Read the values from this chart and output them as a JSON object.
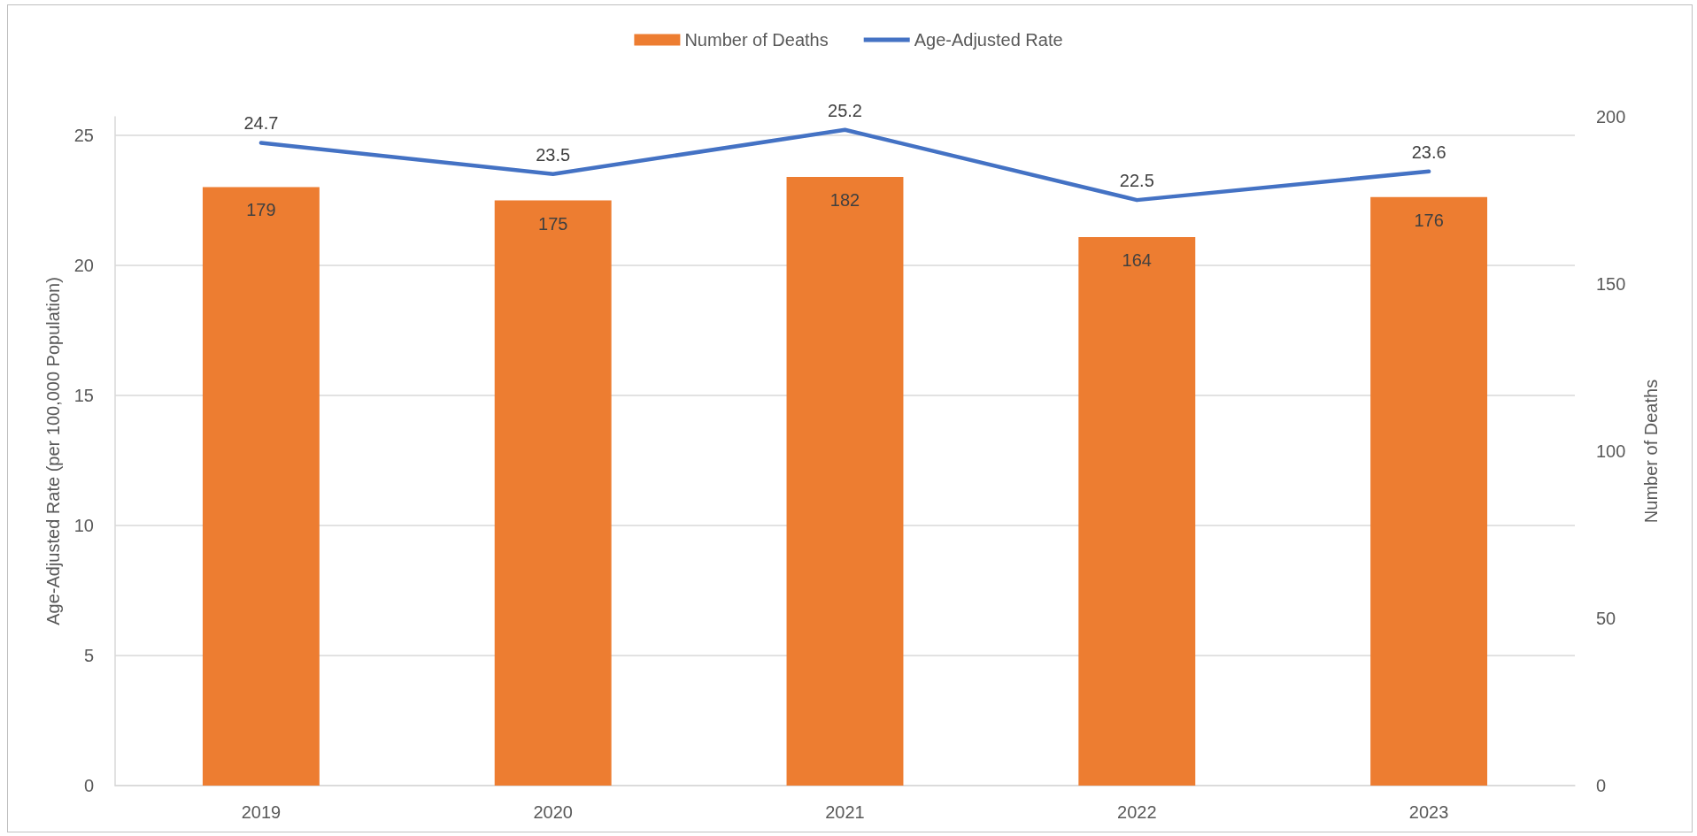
{
  "chart_data": {
    "type": "bar",
    "categories": [
      "2019",
      "2020",
      "2021",
      "2022",
      "2023"
    ],
    "ylabel": "Age-Adjusted Rate (per 100,000 Population)",
    "y2label": "Number of Deaths",
    "series": [
      {
        "name": "Number of Deaths",
        "axis": "y2",
        "color": "#ed7d31",
        "values": [
          179,
          175,
          182,
          164,
          176
        ]
      },
      {
        "name": "Age-Adjusted Rate",
        "type": "line",
        "color": "#4472c4",
        "values": [
          24.7,
          23.5,
          25.2,
          22.5,
          23.6
        ]
      }
    ],
    "ylim": [
      0,
      25.7
    ],
    "yticks": [
      0,
      5,
      10,
      15,
      20,
      25
    ],
    "y2lim": [
      0,
      200
    ],
    "y2ticks": [
      0,
      50,
      100,
      150,
      200
    ],
    "grid": "y",
    "legend": "top",
    "data_labels": true,
    "marker": "none",
    "line_style": "solid"
  }
}
